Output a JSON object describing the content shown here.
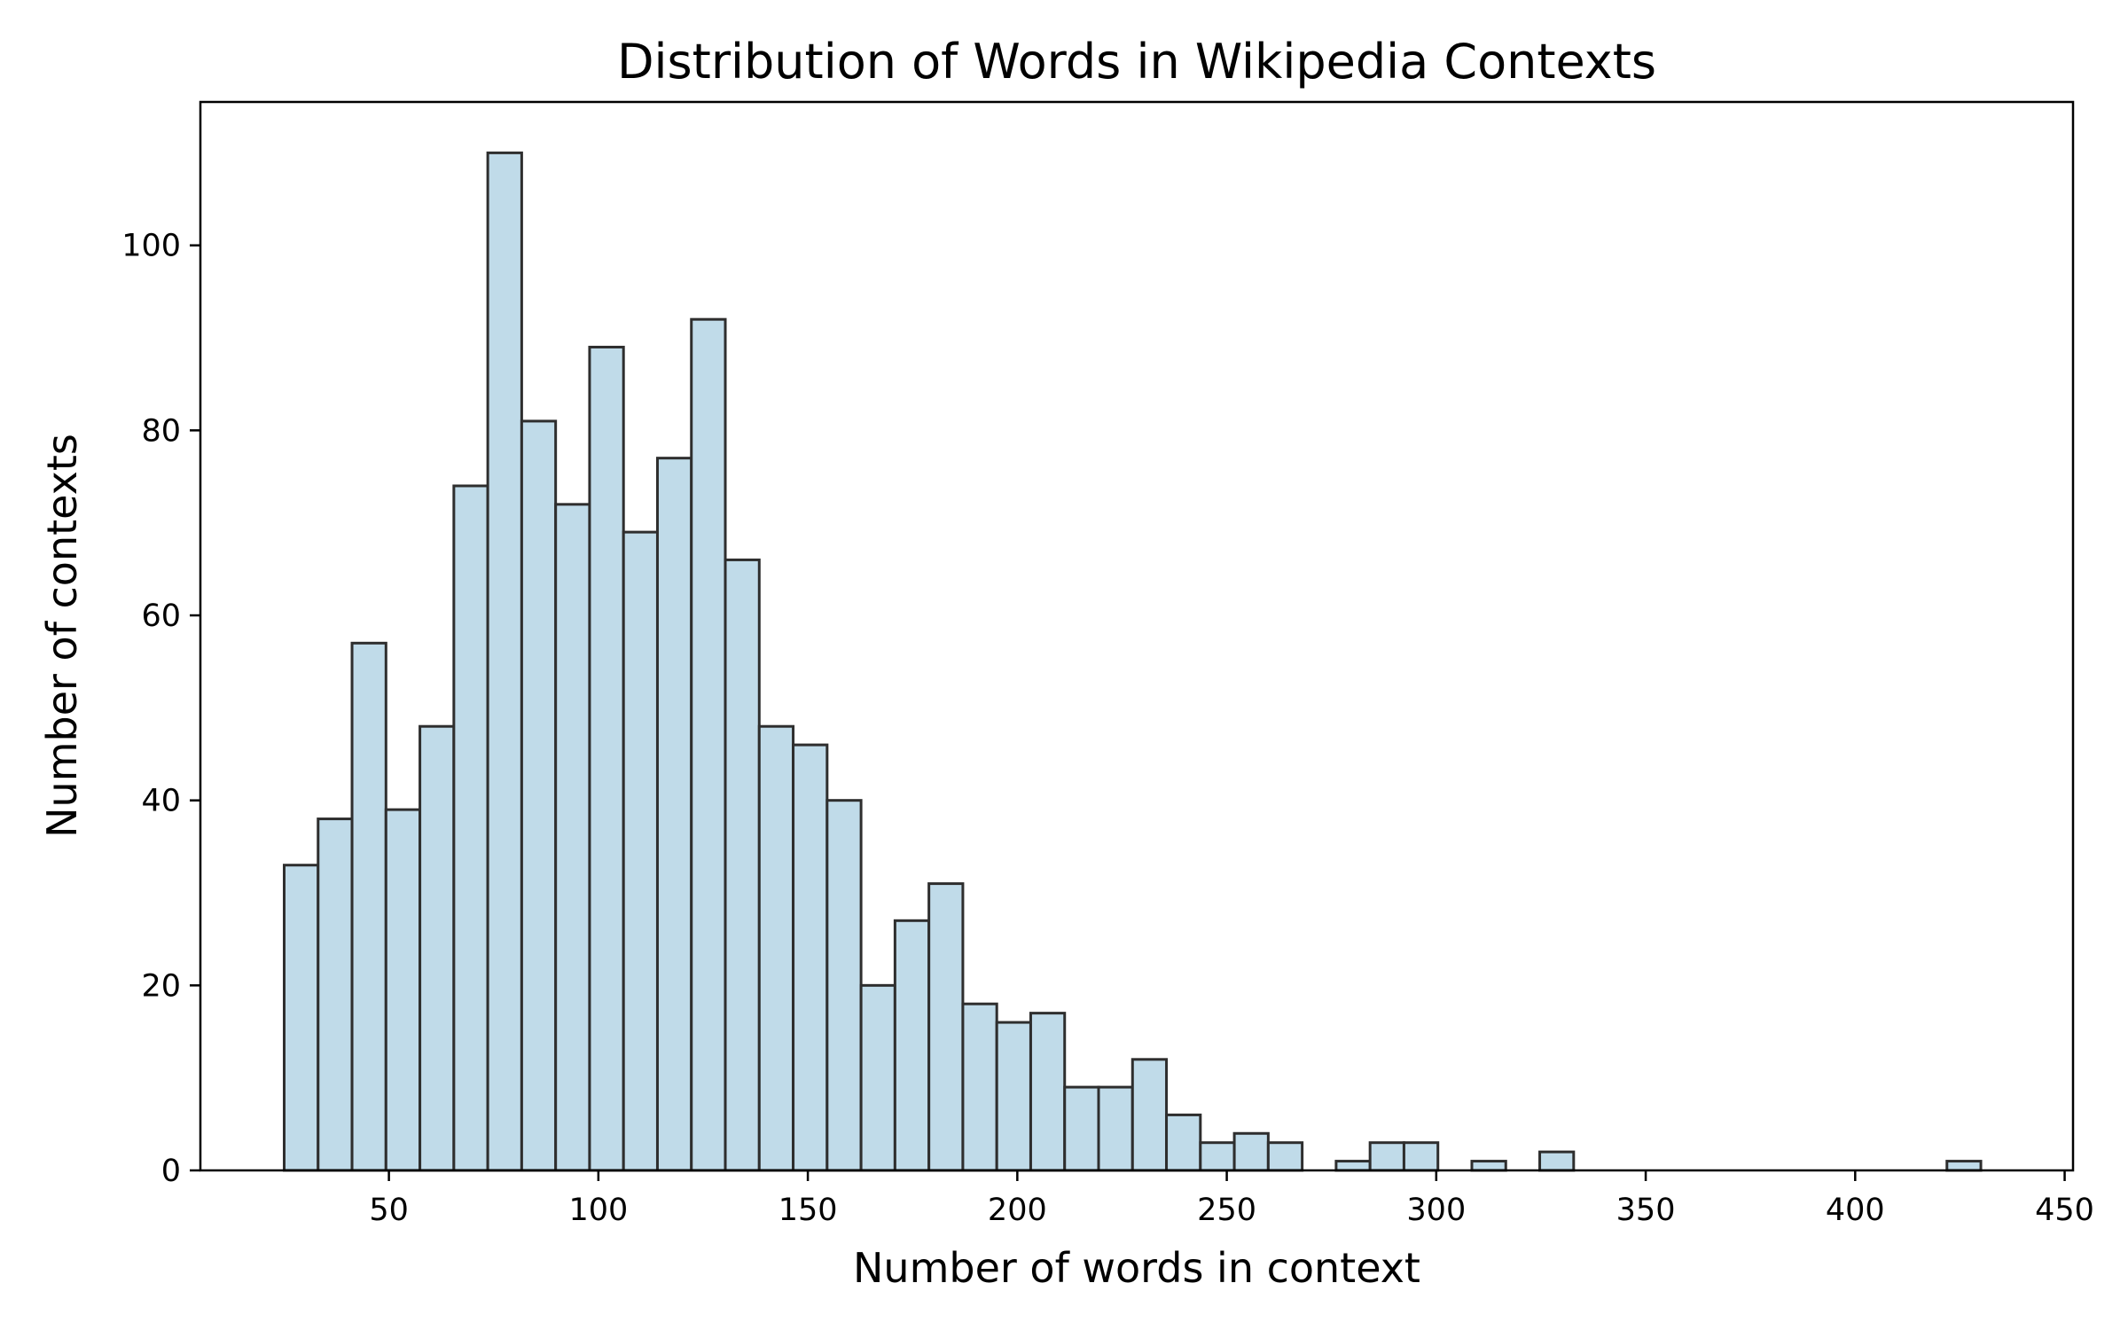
{
  "chart_data": {
    "type": "bar",
    "title": "Distribution of Words in Wikipedia Contexts",
    "xlabel": "Number of words in context",
    "ylabel": "Number of contexts",
    "xlim": [
      5,
      452
    ],
    "ylim": [
      0,
      115.5
    ],
    "x_ticks": [
      50,
      100,
      150,
      200,
      250,
      300,
      350,
      400,
      450
    ],
    "y_ticks": [
      0,
      20,
      40,
      60,
      80,
      100
    ],
    "bin_edges": [
      25,
      33.1,
      41.2,
      49.3,
      57.4,
      65.5,
      73.6,
      81.7,
      89.8,
      97.9,
      106.0,
      114.1,
      122.2,
      130.3,
      138.4,
      146.5,
      154.6,
      162.7,
      170.8,
      178.9,
      187.0,
      195.1,
      203.2,
      211.3,
      219.4,
      227.5,
      235.6,
      243.7,
      251.8,
      259.9,
      268.0,
      276.1,
      284.2,
      292.3,
      300.4,
      308.5,
      316.6,
      324.7,
      332.8,
      340.9,
      349.0,
      357.1,
      365.2,
      373.3,
      381.4,
      389.5,
      397.6,
      405.7,
      413.8,
      421.9,
      430.0
    ],
    "values": [
      33,
      38,
      57,
      39,
      48,
      74,
      110,
      81,
      72,
      89,
      69,
      77,
      92,
      66,
      48,
      46,
      40,
      20,
      27,
      31,
      18,
      16,
      17,
      9,
      9,
      12,
      6,
      3,
      4,
      3,
      0,
      1,
      3,
      3,
      0,
      1,
      0,
      2,
      0,
      0,
      0,
      0,
      0,
      0,
      0,
      0,
      0,
      0,
      0,
      1
    ],
    "bar_color": "#c0dbe9",
    "edge_color": "#2e2e2e",
    "grid": false
  }
}
